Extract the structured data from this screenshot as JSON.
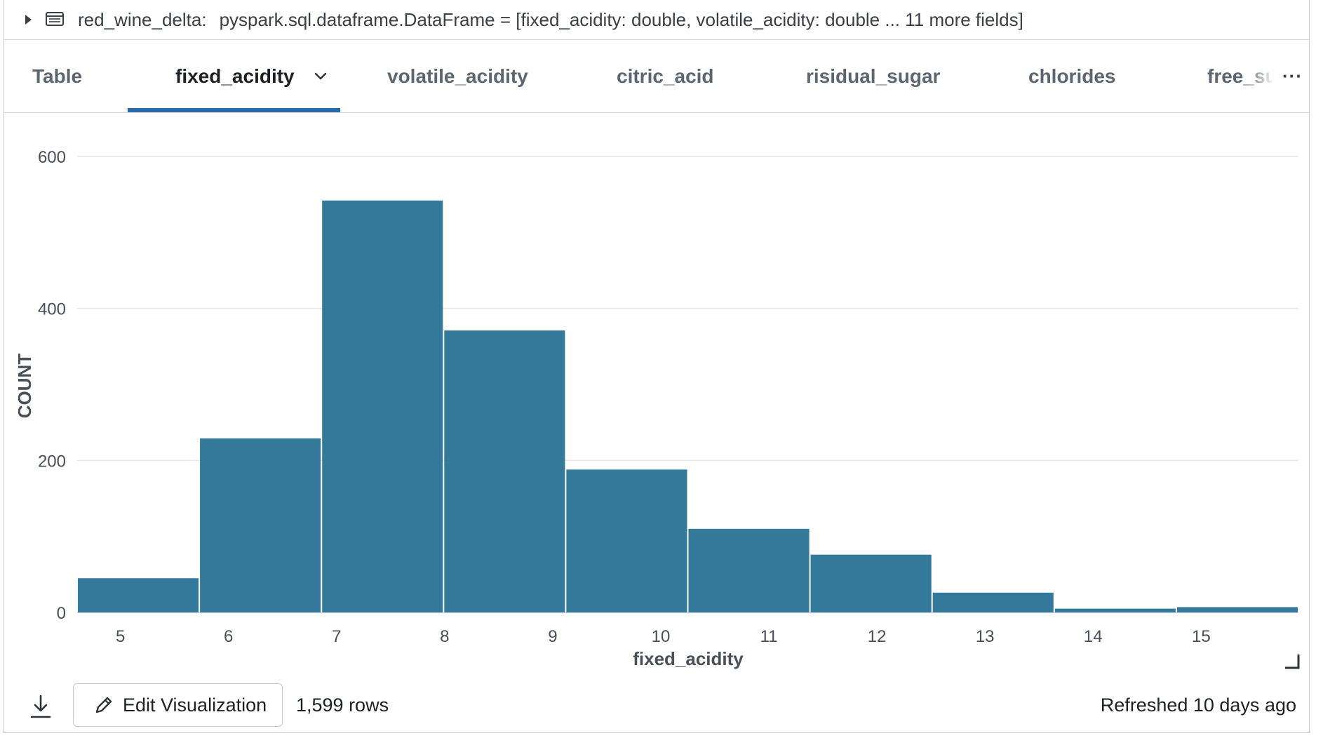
{
  "header": {
    "variable_name": "red_wine_delta:",
    "type_description": "pyspark.sql.dataframe.DataFrame = [fixed_acidity: double, volatile_acidity: double ... 11 more fields]"
  },
  "tabs": [
    {
      "label": "Table",
      "active": false
    },
    {
      "label": "fixed_acidity",
      "active": true
    },
    {
      "label": "volatile_acidity",
      "active": false
    },
    {
      "label": "citric_acid",
      "active": false
    },
    {
      "label": "risidual_sugar",
      "active": false
    },
    {
      "label": "chlorides",
      "active": false
    },
    {
      "label": "free_su",
      "active": false
    }
  ],
  "tab_more_label": "···",
  "chart_data": {
    "type": "bar",
    "subtype": "histogram",
    "xlabel": "fixed_acidity",
    "ylabel": "COUNT",
    "xlim": [
      4.6,
      15.9
    ],
    "ylim": [
      0,
      600
    ],
    "yticks": [
      0,
      200,
      400,
      600
    ],
    "xticks": [
      5,
      6,
      7,
      8,
      9,
      10,
      11,
      12,
      13,
      14,
      15
    ],
    "grid": true,
    "bar_color": "#35799a",
    "bins": [
      {
        "start": 4.6,
        "end": 5.73,
        "count": 45
      },
      {
        "start": 5.73,
        "end": 6.86,
        "count": 229
      },
      {
        "start": 6.86,
        "end": 7.99,
        "count": 542
      },
      {
        "start": 7.99,
        "end": 9.12,
        "count": 371
      },
      {
        "start": 9.12,
        "end": 10.25,
        "count": 188
      },
      {
        "start": 10.25,
        "end": 11.38,
        "count": 110
      },
      {
        "start": 11.38,
        "end": 12.51,
        "count": 76
      },
      {
        "start": 12.51,
        "end": 13.64,
        "count": 26
      },
      {
        "start": 13.64,
        "end": 14.77,
        "count": 5
      },
      {
        "start": 14.77,
        "end": 15.9,
        "count": 7
      }
    ]
  },
  "footer": {
    "edit_label": "Edit Visualization",
    "row_count": "1,599 rows",
    "refreshed": "Refreshed 10 days ago"
  }
}
